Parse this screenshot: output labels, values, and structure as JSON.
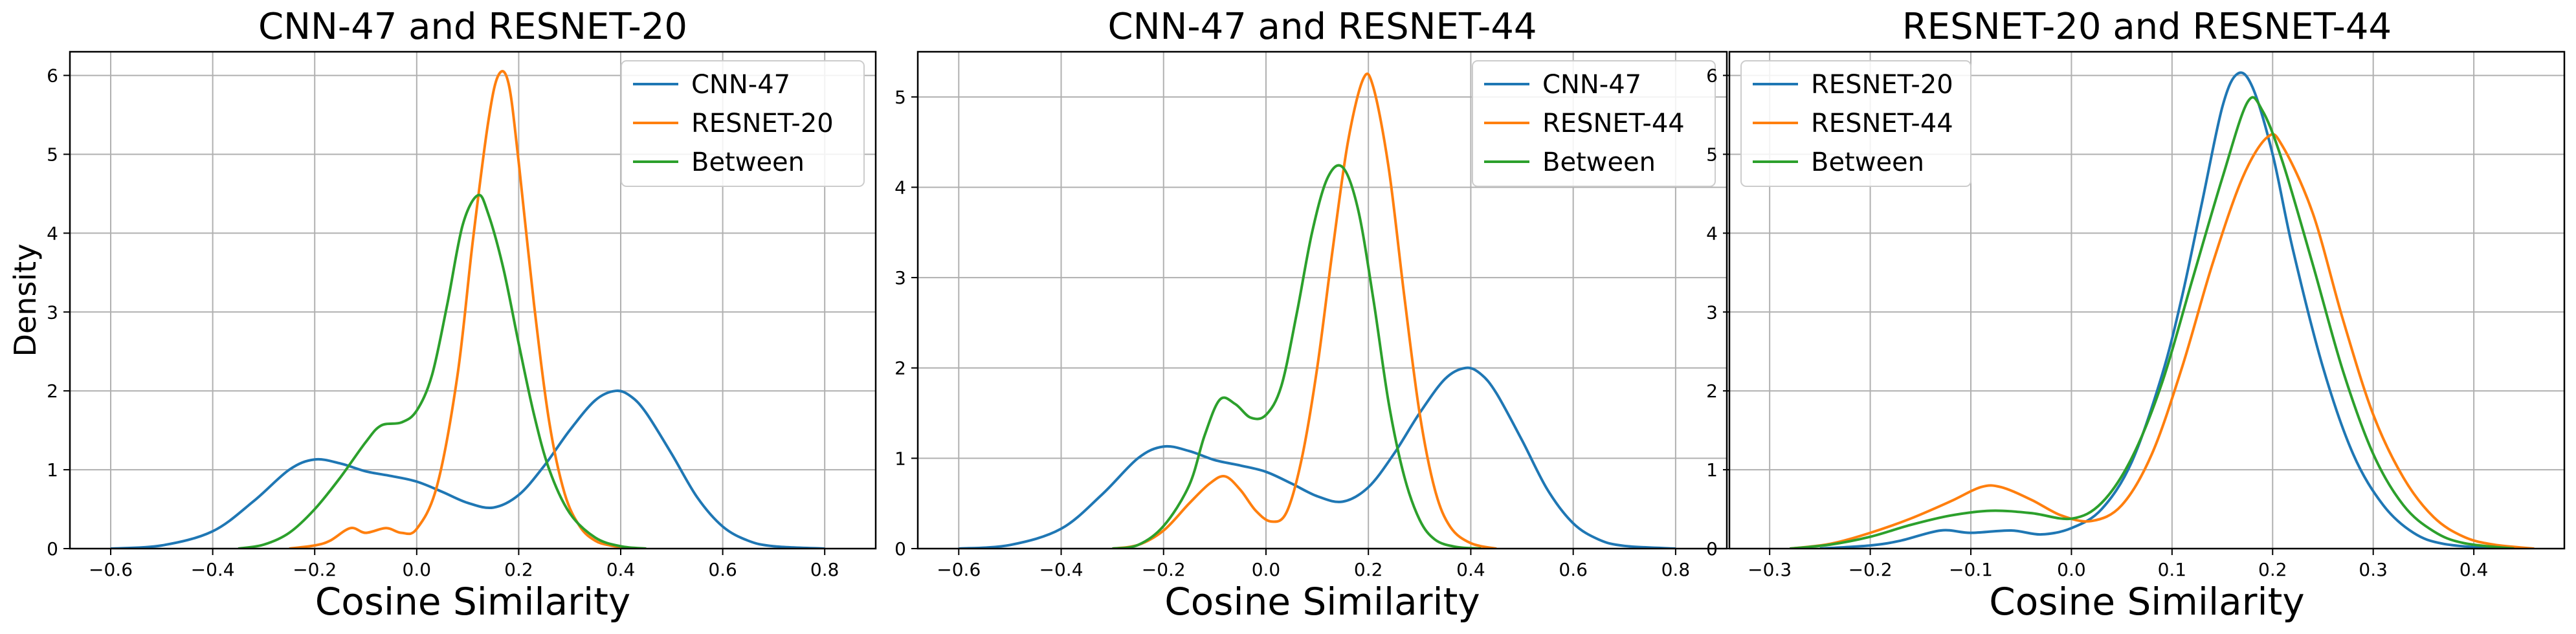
{
  "chart_data": [
    {
      "type": "line",
      "title": "CNN-47 and RESNET-20",
      "xlabel": "Cosine Similarity",
      "ylabel": "Density",
      "xlim": [
        -0.68,
        0.9
      ],
      "ylim": [
        0,
        6.3
      ],
      "xticks": [
        -0.6,
        -0.4,
        -0.2,
        0.0,
        0.2,
        0.4,
        0.6,
        0.8
      ],
      "xtick_labels": [
        "−0.6",
        "−0.4",
        "−0.2",
        "0.0",
        "0.2",
        "0.4",
        "0.6",
        "0.8"
      ],
      "yticks": [
        0,
        1,
        2,
        3,
        4,
        5,
        6
      ],
      "ytick_labels": [
        "0",
        "1",
        "2",
        "3",
        "4",
        "5",
        "6"
      ],
      "grid": true,
      "legend_position": "top-right",
      "series": [
        {
          "name": "CNN-47",
          "color": "#1f77b4",
          "points": [
            [
              -0.6,
              0.0
            ],
            [
              -0.5,
              0.04
            ],
            [
              -0.4,
              0.22
            ],
            [
              -0.32,
              0.6
            ],
            [
              -0.25,
              1.0
            ],
            [
              -0.2,
              1.13
            ],
            [
              -0.15,
              1.08
            ],
            [
              -0.1,
              0.98
            ],
            [
              -0.05,
              0.92
            ],
            [
              0.0,
              0.85
            ],
            [
              0.05,
              0.72
            ],
            [
              0.1,
              0.58
            ],
            [
              0.15,
              0.52
            ],
            [
              0.2,
              0.68
            ],
            [
              0.25,
              1.05
            ],
            [
              0.3,
              1.5
            ],
            [
              0.35,
              1.88
            ],
            [
              0.39,
              2.0
            ],
            [
              0.42,
              1.93
            ],
            [
              0.45,
              1.72
            ],
            [
              0.5,
              1.2
            ],
            [
              0.55,
              0.65
            ],
            [
              0.6,
              0.28
            ],
            [
              0.65,
              0.1
            ],
            [
              0.7,
              0.03
            ],
            [
              0.8,
              0.0
            ]
          ]
        },
        {
          "name": "RESNET-20",
          "color": "#ff7f0e",
          "points": [
            [
              -0.25,
              0.0
            ],
            [
              -0.2,
              0.04
            ],
            [
              -0.17,
              0.1
            ],
            [
              -0.13,
              0.26
            ],
            [
              -0.1,
              0.2
            ],
            [
              -0.06,
              0.26
            ],
            [
              -0.03,
              0.2
            ],
            [
              0.0,
              0.25
            ],
            [
              0.04,
              0.8
            ],
            [
              0.08,
              2.2
            ],
            [
              0.11,
              3.9
            ],
            [
              0.14,
              5.4
            ],
            [
              0.16,
              6.0
            ],
            [
              0.18,
              5.9
            ],
            [
              0.2,
              4.9
            ],
            [
              0.23,
              3.1
            ],
            [
              0.26,
              1.6
            ],
            [
              0.29,
              0.7
            ],
            [
              0.32,
              0.28
            ],
            [
              0.35,
              0.1
            ],
            [
              0.38,
              0.04
            ],
            [
              0.42,
              0.0
            ]
          ]
        },
        {
          "name": "Between",
          "color": "#2ca02c",
          "points": [
            [
              -0.35,
              0.0
            ],
            [
              -0.3,
              0.05
            ],
            [
              -0.25,
              0.2
            ],
            [
              -0.2,
              0.5
            ],
            [
              -0.15,
              0.9
            ],
            [
              -0.1,
              1.35
            ],
            [
              -0.07,
              1.56
            ],
            [
              -0.03,
              1.6
            ],
            [
              0.0,
              1.75
            ],
            [
              0.03,
              2.2
            ],
            [
              0.06,
              3.1
            ],
            [
              0.09,
              4.1
            ],
            [
              0.12,
              4.48
            ],
            [
              0.14,
              4.25
            ],
            [
              0.17,
              3.55
            ],
            [
              0.2,
              2.6
            ],
            [
              0.23,
              1.7
            ],
            [
              0.26,
              1.0
            ],
            [
              0.3,
              0.45
            ],
            [
              0.35,
              0.14
            ],
            [
              0.4,
              0.03
            ],
            [
              0.45,
              0.0
            ]
          ]
        }
      ]
    },
    {
      "type": "line",
      "title": "CNN-47 and RESNET-44",
      "xlabel": "Cosine Similarity",
      "ylabel": "",
      "xlim": [
        -0.68,
        0.9
      ],
      "ylim": [
        0,
        5.5
      ],
      "xticks": [
        -0.6,
        -0.4,
        -0.2,
        0.0,
        0.2,
        0.4,
        0.6,
        0.8
      ],
      "xtick_labels": [
        "−0.6",
        "−0.4",
        "−0.2",
        "0.0",
        "0.2",
        "0.4",
        "0.6",
        "0.8"
      ],
      "yticks": [
        0,
        1,
        2,
        3,
        4,
        5
      ],
      "ytick_labels": [
        "0",
        "1",
        "2",
        "3",
        "4",
        "5"
      ],
      "grid": true,
      "legend_position": "top-right",
      "series": [
        {
          "name": "CNN-47",
          "color": "#1f77b4",
          "points": [
            [
              -0.6,
              0.0
            ],
            [
              -0.5,
              0.04
            ],
            [
              -0.4,
              0.22
            ],
            [
              -0.32,
              0.6
            ],
            [
              -0.25,
              1.0
            ],
            [
              -0.2,
              1.13
            ],
            [
              -0.15,
              1.08
            ],
            [
              -0.1,
              0.98
            ],
            [
              -0.05,
              0.92
            ],
            [
              0.0,
              0.85
            ],
            [
              0.05,
              0.72
            ],
            [
              0.1,
              0.58
            ],
            [
              0.15,
              0.52
            ],
            [
              0.2,
              0.68
            ],
            [
              0.25,
              1.05
            ],
            [
              0.3,
              1.5
            ],
            [
              0.35,
              1.88
            ],
            [
              0.39,
              2.0
            ],
            [
              0.42,
              1.93
            ],
            [
              0.45,
              1.72
            ],
            [
              0.5,
              1.2
            ],
            [
              0.55,
              0.65
            ],
            [
              0.6,
              0.28
            ],
            [
              0.65,
              0.1
            ],
            [
              0.7,
              0.03
            ],
            [
              0.8,
              0.0
            ]
          ]
        },
        {
          "name": "RESNET-44",
          "color": "#ff7f0e",
          "points": [
            [
              -0.3,
              0.0
            ],
            [
              -0.25,
              0.04
            ],
            [
              -0.2,
              0.2
            ],
            [
              -0.15,
              0.5
            ],
            [
              -0.11,
              0.72
            ],
            [
              -0.08,
              0.8
            ],
            [
              -0.05,
              0.65
            ],
            [
              -0.02,
              0.42
            ],
            [
              0.01,
              0.3
            ],
            [
              0.04,
              0.4
            ],
            [
              0.07,
              1.0
            ],
            [
              0.1,
              2.0
            ],
            [
              0.13,
              3.3
            ],
            [
              0.16,
              4.5
            ],
            [
              0.19,
              5.2
            ],
            [
              0.21,
              5.1
            ],
            [
              0.24,
              4.2
            ],
            [
              0.27,
              2.8
            ],
            [
              0.3,
              1.5
            ],
            [
              0.33,
              0.65
            ],
            [
              0.36,
              0.24
            ],
            [
              0.4,
              0.06
            ],
            [
              0.45,
              0.0
            ]
          ]
        },
        {
          "name": "Between",
          "color": "#2ca02c",
          "points": [
            [
              -0.3,
              0.0
            ],
            [
              -0.25,
              0.04
            ],
            [
              -0.2,
              0.25
            ],
            [
              -0.15,
              0.7
            ],
            [
              -0.12,
              1.25
            ],
            [
              -0.09,
              1.65
            ],
            [
              -0.06,
              1.6
            ],
            [
              -0.03,
              1.45
            ],
            [
              0.0,
              1.48
            ],
            [
              0.03,
              1.8
            ],
            [
              0.06,
              2.6
            ],
            [
              0.09,
              3.5
            ],
            [
              0.12,
              4.1
            ],
            [
              0.15,
              4.22
            ],
            [
              0.18,
              3.75
            ],
            [
              0.21,
              2.75
            ],
            [
              0.24,
              1.6
            ],
            [
              0.27,
              0.8
            ],
            [
              0.3,
              0.32
            ],
            [
              0.33,
              0.1
            ],
            [
              0.37,
              0.02
            ],
            [
              0.42,
              0.0
            ]
          ]
        }
      ]
    },
    {
      "type": "line",
      "title": "RESNET-20 and RESNET-44",
      "xlabel": "Cosine Similarity",
      "ylabel": "",
      "xlim": [
        -0.34,
        0.49
      ],
      "ylim": [
        0,
        6.3
      ],
      "xticks": [
        -0.3,
        -0.2,
        -0.1,
        0.0,
        0.1,
        0.2,
        0.3,
        0.4
      ],
      "xtick_labels": [
        "−0.3",
        "−0.2",
        "−0.1",
        "0.0",
        "0.1",
        "0.2",
        "0.3",
        "0.4"
      ],
      "yticks": [
        0,
        1,
        2,
        3,
        4,
        5,
        6
      ],
      "ytick_labels": [
        "0",
        "1",
        "2",
        "3",
        "4",
        "5",
        "6"
      ],
      "grid": true,
      "legend_position": "top-left",
      "series": [
        {
          "name": "RESNET-20",
          "color": "#1f77b4",
          "points": [
            [
              -0.25,
              0.0
            ],
            [
              -0.2,
              0.04
            ],
            [
              -0.17,
              0.1
            ],
            [
              -0.13,
              0.23
            ],
            [
              -0.1,
              0.2
            ],
            [
              -0.06,
              0.23
            ],
            [
              -0.03,
              0.18
            ],
            [
              0.0,
              0.26
            ],
            [
              0.03,
              0.5
            ],
            [
              0.06,
              1.1
            ],
            [
              0.09,
              2.2
            ],
            [
              0.11,
              3.2
            ],
            [
              0.13,
              4.4
            ],
            [
              0.15,
              5.6
            ],
            [
              0.165,
              6.02
            ],
            [
              0.18,
              5.85
            ],
            [
              0.2,
              5.0
            ],
            [
              0.22,
              3.8
            ],
            [
              0.25,
              2.3
            ],
            [
              0.28,
              1.2
            ],
            [
              0.31,
              0.55
            ],
            [
              0.34,
              0.2
            ],
            [
              0.37,
              0.06
            ],
            [
              0.42,
              0.0
            ]
          ]
        },
        {
          "name": "RESNET-44",
          "color": "#ff7f0e",
          "points": [
            [
              -0.28,
              0.0
            ],
            [
              -0.24,
              0.06
            ],
            [
              -0.2,
              0.2
            ],
            [
              -0.16,
              0.38
            ],
            [
              -0.12,
              0.6
            ],
            [
              -0.09,
              0.78
            ],
            [
              -0.07,
              0.78
            ],
            [
              -0.04,
              0.62
            ],
            [
              -0.01,
              0.42
            ],
            [
              0.02,
              0.35
            ],
            [
              0.05,
              0.55
            ],
            [
              0.08,
              1.2
            ],
            [
              0.11,
              2.3
            ],
            [
              0.14,
              3.6
            ],
            [
              0.17,
              4.7
            ],
            [
              0.195,
              5.22
            ],
            [
              0.21,
              5.1
            ],
            [
              0.24,
              4.25
            ],
            [
              0.27,
              2.9
            ],
            [
              0.3,
              1.7
            ],
            [
              0.33,
              0.9
            ],
            [
              0.36,
              0.4
            ],
            [
              0.39,
              0.15
            ],
            [
              0.42,
              0.05
            ],
            [
              0.46,
              0.0
            ]
          ]
        },
        {
          "name": "Between",
          "color": "#2ca02c",
          "points": [
            [
              -0.28,
              0.0
            ],
            [
              -0.24,
              0.05
            ],
            [
              -0.2,
              0.15
            ],
            [
              -0.16,
              0.3
            ],
            [
              -0.12,
              0.42
            ],
            [
              -0.08,
              0.48
            ],
            [
              -0.04,
              0.45
            ],
            [
              0.0,
              0.38
            ],
            [
              0.03,
              0.58
            ],
            [
              0.06,
              1.15
            ],
            [
              0.09,
              2.1
            ],
            [
              0.12,
              3.4
            ],
            [
              0.15,
              4.7
            ],
            [
              0.175,
              5.66
            ],
            [
              0.19,
              5.55
            ],
            [
              0.21,
              4.9
            ],
            [
              0.24,
              3.6
            ],
            [
              0.27,
              2.25
            ],
            [
              0.3,
              1.2
            ],
            [
              0.33,
              0.55
            ],
            [
              0.36,
              0.22
            ],
            [
              0.39,
              0.07
            ],
            [
              0.44,
              0.0
            ]
          ]
        }
      ]
    }
  ]
}
